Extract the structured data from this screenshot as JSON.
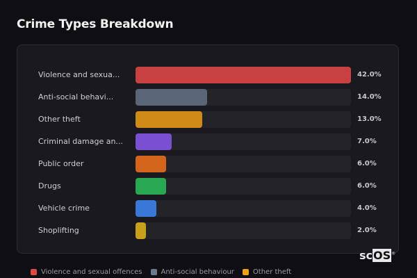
{
  "title": "Crime Types Breakdown",
  "chart_data": {
    "type": "bar",
    "orientation": "horizontal",
    "title": "Crime Types Breakdown",
    "categories": [
      "Violence and sexua...",
      "Anti-social behavi...",
      "Other theft",
      "Criminal damage an...",
      "Public order",
      "Drugs",
      "Vehicle crime",
      "Shoplifting"
    ],
    "values": [
      42.0,
      14.0,
      13.0,
      7.0,
      6.0,
      6.0,
      4.0,
      2.0
    ],
    "value_labels": [
      "42.0%",
      "14.0%",
      "13.0%",
      "7.0%",
      "6.0%",
      "6.0%",
      "4.0%",
      "2.0%"
    ],
    "colors": [
      "#c94040",
      "#5a6577",
      "#d08a18",
      "#7a4fd0",
      "#d2641c",
      "#28a852",
      "#3a78d8",
      "#c9a01a"
    ],
    "xlim": [
      0,
      42
    ],
    "grid": false,
    "legend": {
      "placement": "bottom",
      "entries": [
        {
          "label": "Violence and sexual offences",
          "color": "#e04848"
        },
        {
          "label": "Anti-social behaviour",
          "color": "#6a7890"
        },
        {
          "label": "Other theft",
          "color": "#f0a010"
        }
      ]
    }
  },
  "logo": {
    "text_a": "sc",
    "text_b": "OS",
    "mark": "®"
  }
}
